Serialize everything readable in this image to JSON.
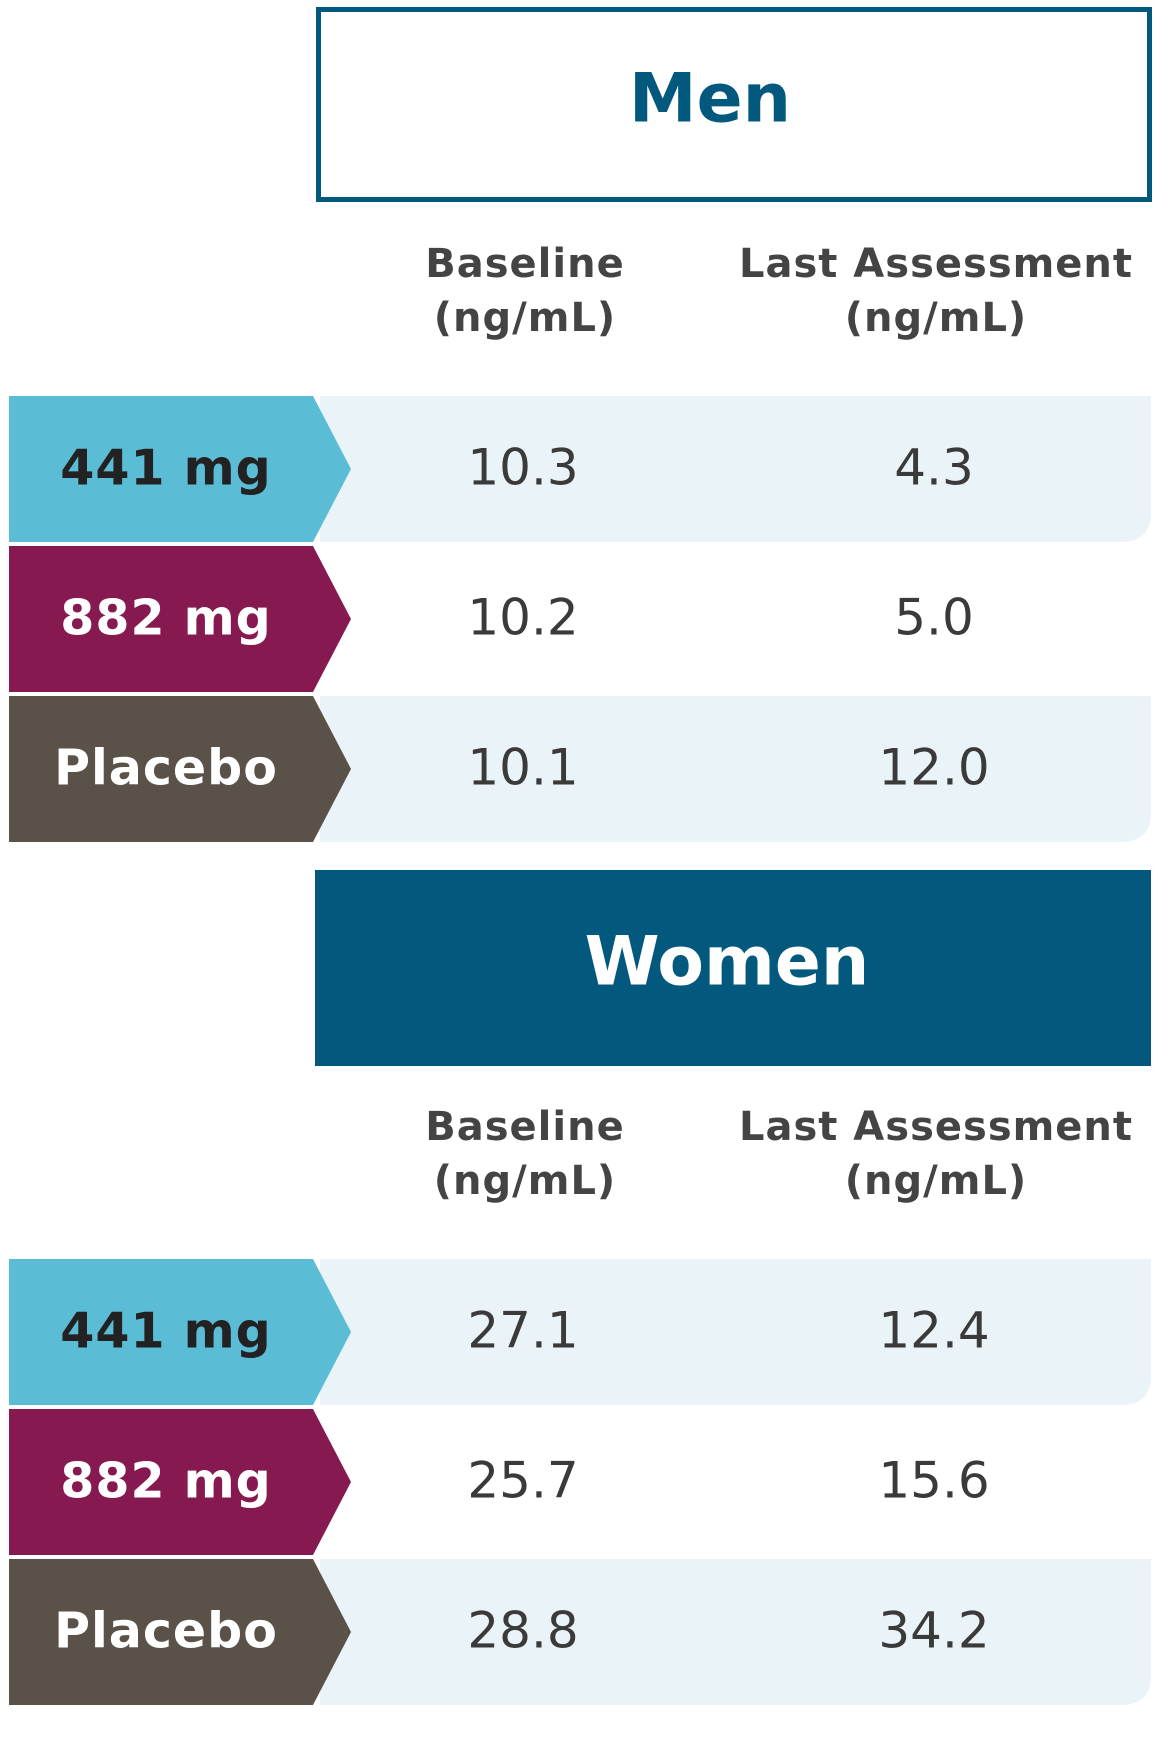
{
  "sections": [
    {
      "title": "Men",
      "style": "outline",
      "columns": [
        [
          "Baseline",
          "(ng/mL)"
        ],
        [
          "Last Assessment",
          "(ng/mL)"
        ]
      ],
      "rows": [
        {
          "label": "441 mg",
          "color": "#5bbcd6",
          "text_color": "#222222",
          "values": [
            "10.3",
            "4.3"
          ]
        },
        {
          "label": "882 mg",
          "color": "#861a50",
          "text_color": "#ffffff",
          "values": [
            "10.2",
            "5.0"
          ]
        },
        {
          "label": "Placebo",
          "color": "#5a5148",
          "text_color": "#ffffff",
          "values": [
            "10.1",
            "12.0"
          ]
        }
      ]
    },
    {
      "title": "Women",
      "style": "filled",
      "columns": [
        [
          "Baseline",
          "(ng/mL)"
        ],
        [
          "Last Assessment",
          "(ng/mL)"
        ]
      ],
      "rows": [
        {
          "label": "441 mg",
          "color": "#5bbcd6",
          "text_color": "#222222",
          "values": [
            "27.1",
            "12.4"
          ]
        },
        {
          "label": "882 mg",
          "color": "#861a50",
          "text_color": "#ffffff",
          "values": [
            "25.7",
            "15.6"
          ]
        },
        {
          "label": "Placebo",
          "color": "#5a5148",
          "text_color": "#ffffff",
          "values": [
            "28.8",
            "34.2"
          ]
        }
      ]
    }
  ]
}
